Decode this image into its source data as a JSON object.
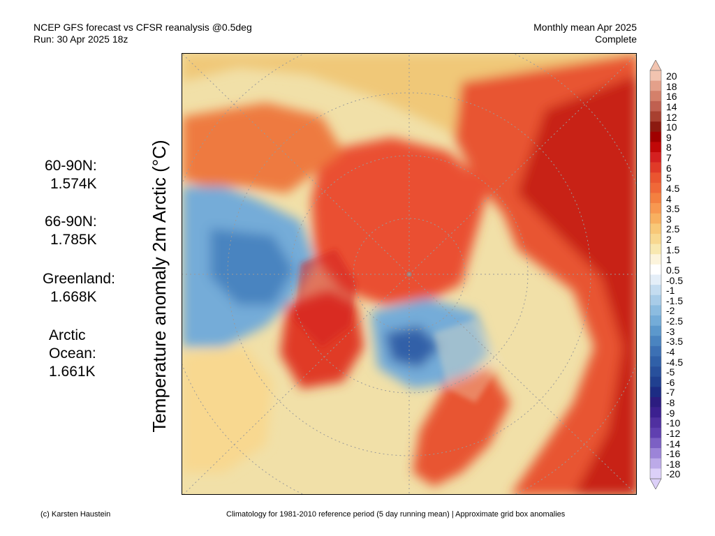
{
  "header": {
    "line1": "NCEP GFS forecast vs CFSR reanalysis @0.5deg",
    "line2": "Run: 30 Apr 2025 18z",
    "period": "Monthly mean Apr 2025",
    "status": "Complete"
  },
  "axis_title": "Temperature anomaly 2m Arctic (°C)",
  "stats": [
    {
      "label": "60-90N:",
      "value": "1.574K"
    },
    {
      "label": "66-90N:",
      "value": "1.785K"
    },
    {
      "label": "Greenland:",
      "value": "1.668K"
    },
    {
      "label_lines": [
        "Arctic",
        "Ocean:"
      ],
      "value": "1.661K"
    }
  ],
  "legend": {
    "labels": [
      "20",
      "18",
      "16",
      "14",
      "12",
      "10",
      "9",
      "8",
      "7",
      "6",
      "5",
      "4.5",
      "4",
      "3.5",
      "3",
      "2.5",
      "2",
      "1.5",
      "1",
      "0.5",
      "-0.5",
      "-1",
      "-1.5",
      "-2",
      "-2.5",
      "-3",
      "-3.5",
      "-4",
      "-4.5",
      "-5",
      "-6",
      "-7",
      "-8",
      "-9",
      "-10",
      "-12",
      "-14",
      "-16",
      "-18",
      "-20"
    ],
    "colors": [
      "#f2c4b0",
      "#e4a08a",
      "#d4806a",
      "#c06050",
      "#a84030",
      "#8c1a10",
      "#a00000",
      "#c00808",
      "#d42020",
      "#e03a28",
      "#ea5530",
      "#f06838",
      "#f48040",
      "#f89850",
      "#f8b060",
      "#f8c878",
      "#f8d890",
      "#f8e8b0",
      "#fcf4dc",
      "#ffffff",
      "#e4eef8",
      "#c4dcf0",
      "#a8cce8",
      "#8cbce0",
      "#74acd8",
      "#5c98cc",
      "#4a84c0",
      "#3c70b4",
      "#3060a8",
      "#28509c",
      "#204090",
      "#1c2c84",
      "#2c1c80",
      "#3c2090",
      "#5030a0",
      "#6040b0",
      "#7c60c4",
      "#9c84d8",
      "#bcaae8",
      "#dcd0f8"
    ]
  },
  "map": {
    "description_colors": {
      "warm": "#e0402a",
      "cool": "#4a84c0",
      "neutral": "#f1e0a8"
    }
  },
  "footer": {
    "credit": "(c) Karsten Haustein",
    "note": "Climatology for 1981-2010 reference period (5 day running mean) | Approximate grid box anomalies"
  }
}
